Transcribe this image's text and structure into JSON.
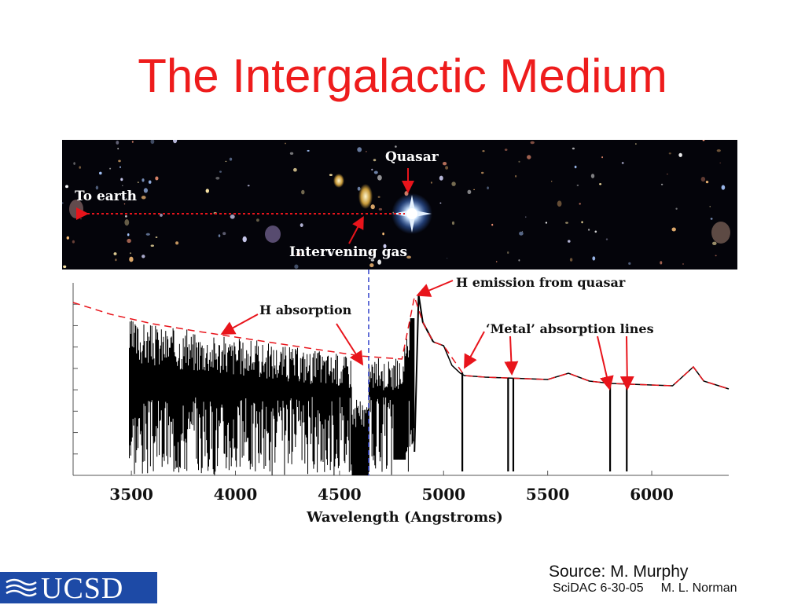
{
  "title": "The Intergalactic Medium",
  "sky_image": {
    "labels": {
      "quasar": "Quasar",
      "to_earth": "To earth",
      "intervening_gas": "Intervening gas"
    },
    "colors": {
      "background": "#04040a",
      "sightline": "#e8141b",
      "arrow": "#e8141b"
    }
  },
  "annotations": {
    "h_absorption": "H absorption",
    "h_emission": "H emission from quasar",
    "metal_lines": "‘Metal’ absorption lines"
  },
  "chart_data": {
    "type": "line",
    "xlabel": "Wavelength (Angstroms)",
    "ylabel": "",
    "xlim": [
      3220,
      6370
    ],
    "x_ticks": [
      3500,
      4000,
      4500,
      5000,
      5500,
      6000
    ],
    "tick_labels": [
      "3500",
      "4000",
      "4500",
      "5000",
      "5500",
      "6000"
    ],
    "grid": false,
    "series": [
      {
        "role": "observed_spectrum",
        "color": "#000000",
        "x": [
          3500,
          3600,
          3700,
          3800,
          3900,
          4000,
          4100,
          4200,
          4300,
          4400,
          4500,
          4560,
          4600,
          4640,
          4700,
          4760,
          4800,
          4830,
          4860,
          4880,
          4900,
          4950,
          5000,
          5040,
          5080,
          5100,
          5200,
          5300,
          5400,
          5500,
          5600,
          5700,
          5800,
          5900,
          6000,
          6100,
          6200,
          6250,
          6370
        ],
        "y": [
          1.55,
          1.6,
          1.58,
          1.58,
          1.6,
          1.55,
          1.57,
          1.55,
          1.52,
          1.5,
          1.5,
          1.3,
          0.9,
          0.9,
          1.15,
          1.2,
          1.3,
          1.65,
          2.25,
          2.3,
          1.95,
          1.7,
          1.65,
          1.4,
          1.3,
          1.27,
          1.25,
          1.24,
          1.23,
          1.22,
          1.3,
          1.2,
          1.17,
          1.16,
          1.15,
          1.14,
          1.38,
          1.2,
          1.1
        ]
      },
      {
        "role": "continuum_fit",
        "color": "#e8141b",
        "x": [
          3220,
          3400,
          3600,
          3800,
          4000,
          4200,
          4400,
          4600,
          4800,
          4860,
          4900,
          4950,
          5000,
          5100,
          5200,
          5300,
          5400,
          5500,
          5600,
          5700,
          5800,
          5900,
          6000,
          6100,
          6200,
          6250,
          6370
        ],
        "y": [
          2.2,
          2.05,
          1.93,
          1.84,
          1.76,
          1.68,
          1.6,
          1.52,
          1.48,
          2.27,
          1.95,
          1.7,
          1.65,
          1.27,
          1.25,
          1.24,
          1.23,
          1.22,
          1.3,
          1.2,
          1.17,
          1.16,
          1.15,
          1.14,
          1.38,
          1.2,
          1.1
        ]
      }
    ],
    "metal_absorption_lines": [
      5090,
      5310,
      5335,
      5800,
      5880
    ],
    "absorption_forest_range": [
      3490,
      4860
    ],
    "marked_wavelength": 4640
  },
  "source": "Source: M. Murphy",
  "footer": {
    "event": "SciDAC 6-30-05",
    "author": "M. L. Norman"
  },
  "logo": {
    "text": "UCSD",
    "color": "#1d4aa6"
  }
}
